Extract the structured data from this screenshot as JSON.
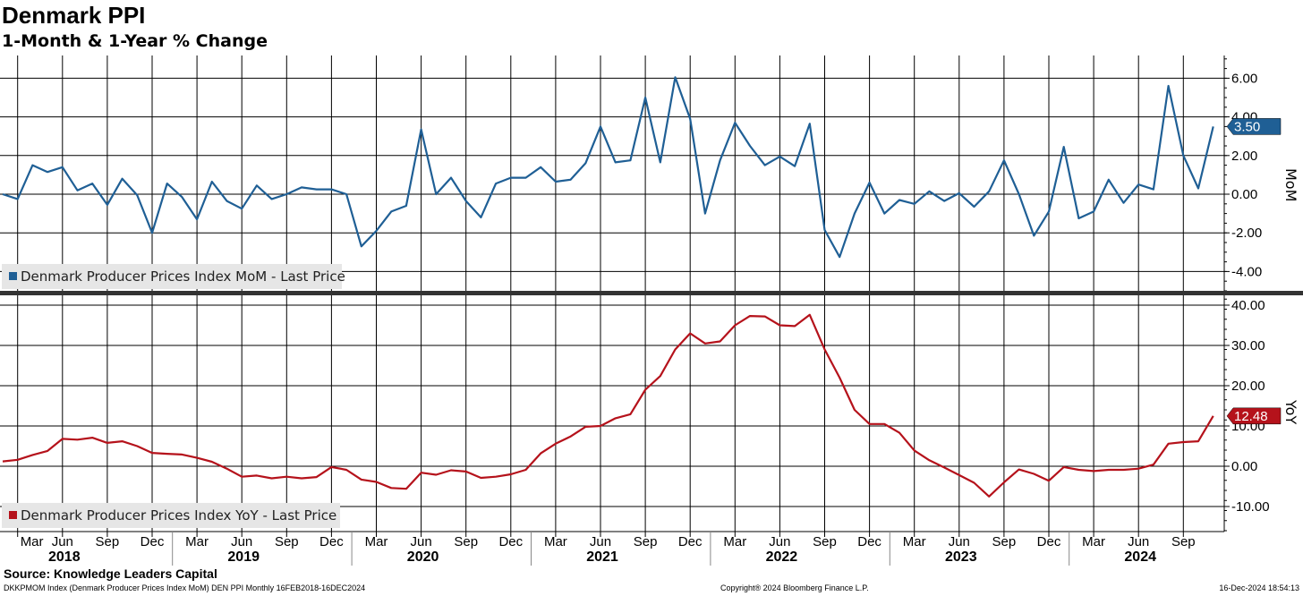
{
  "header": {
    "title": "Denmark PPI",
    "subtitle": "1-Month & 1-Year % Change"
  },
  "colors": {
    "mom": "#1f5f95",
    "yoy": "#b5121b"
  },
  "chart_data": [
    {
      "type": "line",
      "axis_name": "MoM",
      "legend_label": "Denmark Producer Prices Index MoM - Last Price",
      "legend_placement": "bottom-left",
      "last_value": "3.50",
      "ylim": [
        -5,
        7
      ],
      "yticks": [
        6,
        4,
        2,
        0,
        -2,
        -4
      ],
      "ytick_labels": [
        "6.00",
        "4.00",
        "2.00",
        "0.00",
        "-2.00",
        "-4.00"
      ],
      "grid": true,
      "series": [
        {
          "values": [
            0.0,
            -0.25,
            1.5,
            1.15,
            1.4,
            0.2,
            0.55,
            -0.55,
            0.8,
            -0.05,
            -2.0,
            0.55,
            -0.15,
            -1.3,
            0.65,
            -0.35,
            -0.75,
            0.45,
            -0.25,
            0.0,
            0.35,
            0.25,
            0.25,
            0.0,
            -2.7,
            -1.9,
            -0.9,
            -0.6,
            3.35,
            0.0,
            0.85,
            -0.35,
            -1.2,
            0.55,
            0.85,
            0.85,
            1.4,
            0.65,
            0.75,
            1.6,
            3.5,
            1.65,
            1.75,
            5.0,
            1.65,
            6.05,
            3.9,
            -1.0,
            1.75,
            3.7,
            2.5,
            1.5,
            1.95,
            1.45,
            3.65,
            -1.85,
            -3.25,
            -1.0,
            0.6,
            -1.0,
            -0.3,
            -0.5,
            0.15,
            -0.35,
            0.05,
            -0.65,
            0.15,
            1.75,
            0.0,
            -2.15,
            -0.9,
            2.45,
            -1.25,
            -0.9,
            0.75,
            -0.45,
            0.5,
            0.25,
            5.6,
            2.0,
            0.3,
            3.5
          ]
        }
      ]
    },
    {
      "type": "line",
      "axis_name": "YoY",
      "legend_label": "Denmark Producer Prices Index YoY - Last Price",
      "legend_placement": "bottom-left",
      "last_value": "12.48",
      "ylim": [
        -16,
        42
      ],
      "yticks": [
        40,
        30,
        20,
        10,
        0,
        -10
      ],
      "ytick_labels": [
        "40.00",
        "30.00",
        "20.00",
        "10.00",
        "0.00",
        "-10.00"
      ],
      "grid": true,
      "series": [
        {
          "values": [
            1.2,
            1.6,
            2.8,
            3.8,
            6.8,
            6.6,
            7.1,
            5.8,
            6.2,
            5.0,
            3.3,
            3.1,
            2.9,
            2.1,
            1.1,
            -0.6,
            -2.6,
            -2.3,
            -3.0,
            -2.6,
            -3.0,
            -2.7,
            -0.2,
            -0.9,
            -3.3,
            -3.9,
            -5.4,
            -5.6,
            -1.6,
            -2.1,
            -1.0,
            -1.3,
            -2.9,
            -2.6,
            -2.0,
            -0.9,
            3.2,
            5.6,
            7.4,
            9.8,
            10.0,
            11.9,
            12.9,
            19.0,
            22.4,
            29.0,
            33.0,
            30.5,
            31.0,
            35.0,
            37.3,
            37.2,
            35.0,
            34.8,
            37.6,
            29.0,
            22.0,
            14.0,
            10.5,
            10.5,
            8.3,
            3.9,
            1.5,
            -0.3,
            -2.2,
            -4.1,
            -7.5,
            -4.0,
            -0.8,
            -1.9,
            -3.6,
            -0.2,
            -0.9,
            -1.2,
            -0.9,
            -0.9,
            -0.6,
            0.4,
            5.6,
            6.0,
            6.2,
            12.48
          ]
        }
      ]
    }
  ],
  "x_axis": {
    "month_labels": [
      "Mar",
      "Jun",
      "Sep",
      "Dec",
      "Mar",
      "Jun",
      "Sep",
      "Dec",
      "Mar",
      "Jun",
      "Sep",
      "Dec",
      "Mar",
      "Jun",
      "Sep",
      "Dec",
      "Mar",
      "Jun",
      "Sep",
      "Dec",
      "Mar",
      "Jun",
      "Sep",
      "Dec",
      "Mar",
      "Jun",
      "Sep"
    ],
    "year_labels": [
      "2018",
      "2019",
      "2020",
      "2021",
      "2022",
      "2023",
      "2024"
    ],
    "start": "Feb 2018",
    "end": "Dec 2024"
  },
  "footer": {
    "source": "Source: Knowledge Leaders Capital",
    "left": "DKKPMOM Index (Denmark Producer Prices Index MoM) DEN PPI  Monthly 16FEB2018-16DEC2024",
    "center": "Copyright® 2024 Bloomberg Finance L.P.",
    "right": "16-Dec-2024 18:54:13"
  }
}
